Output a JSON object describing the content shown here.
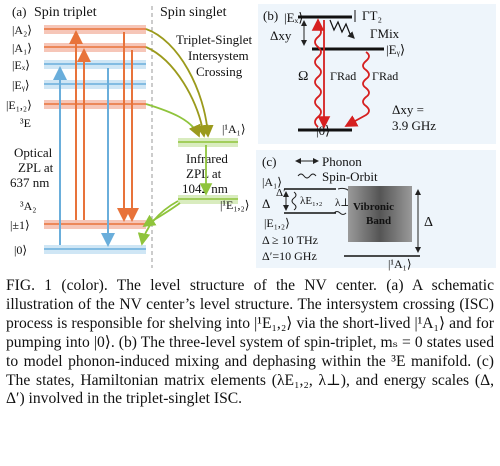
{
  "panel_a": {
    "label": "(a)",
    "spin_triplet": "Spin triplet",
    "spin_singlet": "Spin singlet",
    "levels": {
      "A2": "|A₂⟩",
      "A1": "|A₁⟩",
      "Ex": "|Eₓ⟩",
      "Ey": "|Eᵧ⟩",
      "E12": "|E₁,₂⟩",
      "triplet_E": "³E",
      "triplet_A2": "³A₂",
      "pm1": "|±1⟩",
      "zero": "|0⟩",
      "singlet_A1": "|¹A₁⟩",
      "singlet_E12": "|¹E₁,₂⟩"
    },
    "isc_label": [
      "Triplet-Singlet",
      "Intersystem",
      "Crossing"
    ],
    "optical_zpl": [
      "Optical",
      "ZPL at",
      "637 nm"
    ],
    "infrared_zpl": [
      "Infrared",
      "ZPL at",
      "1042 nm"
    ]
  },
  "panel_b": {
    "label": "(b)",
    "Ex": "|Eₓ⟩",
    "Ey": "|Eᵧ⟩",
    "zero": "|0⟩",
    "gamma_t2": "ΓT₂",
    "gamma_mix": "ΓMix",
    "delta_xy": "Δxy",
    "omega": "Ω",
    "gamma_rad_1": "ΓRad",
    "gamma_rad_2": "ΓRad",
    "delta_xy_value": [
      "Δxy =",
      "3.9 GHz"
    ]
  },
  "panel_c": {
    "label": "(c)",
    "legend_phonon": "Phonon",
    "legend_spin_orbit": "Spin-Orbit",
    "A1": "|A₁⟩",
    "E12": "|E₁,₂⟩",
    "delta": "Δ",
    "delta_prime": "Δ′",
    "lambda_e": "λE₁,₂",
    "lambda_perp": "λ⊥",
    "band": [
      "Vibronic",
      "Band"
    ],
    "delta_right": "Δ",
    "singlet_A1": "|¹A₁⟩",
    "delta_value": "Δ ≥ 10 THz",
    "delta_prime_value": "Δ′=10 GHz"
  },
  "colors": {
    "orange": "#e8733a",
    "pink": "#f6c6b8",
    "blue": "#6aaedb",
    "light_blue": "#cfe6f5",
    "green": "#8fc43c",
    "light_green": "#d9ecbf",
    "olive": "#9b9a1c",
    "red": "#d62020",
    "panel_bg": "#eef5fb"
  },
  "caption": "FIG. 1 (color).  The level structure of the NV center. (a) A schematic illustration of the NV center’s level structure. The intersystem crossing (ISC) process is responsible for shelving into |¹E₁,₂⟩ via the short-lived |¹A₁⟩ and for pumping into |0⟩. (b) The three-level system of spin-triplet, mₛ = 0 states used to model phonon-induced mixing and dephasing within the ³E manifold. (c) The states, Hamiltonian matrix elements (λE₁,₂, λ⊥), and energy scales (Δ, Δ′) involved in the triplet-singlet ISC."
}
